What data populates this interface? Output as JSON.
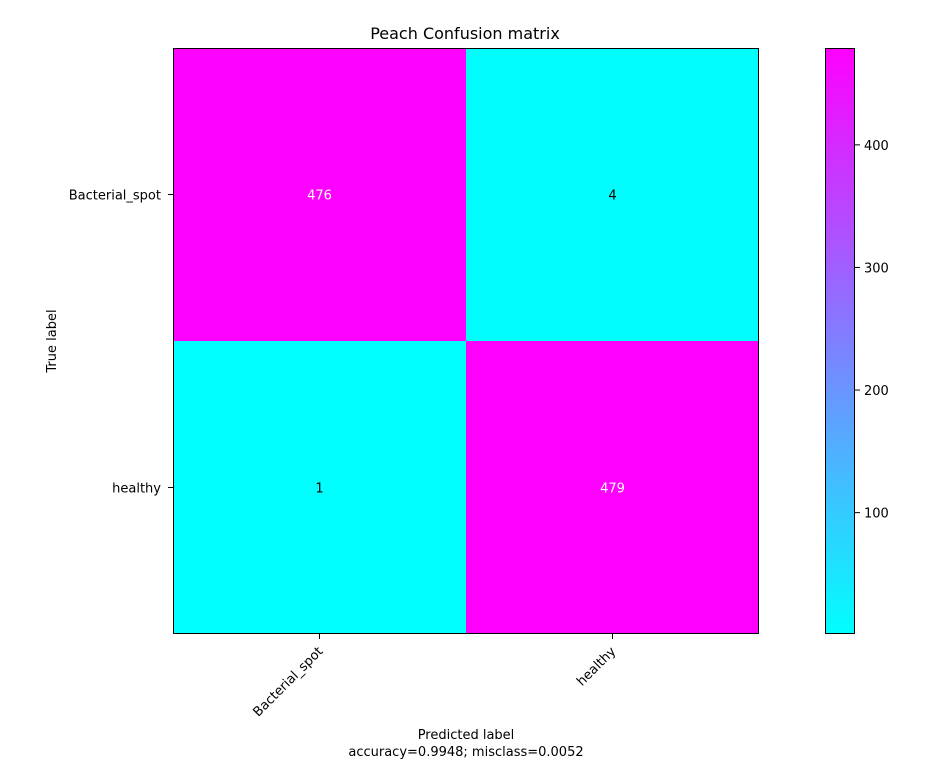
{
  "chart_data": {
    "type": "heatmap",
    "title": "Peach Confusion matrix",
    "xlabel": "Predicted label",
    "xlabel_note": "accuracy=0.9948; misclass=0.0052",
    "ylabel": "True label",
    "x_categories": [
      "Bacterial_spot",
      "healthy"
    ],
    "y_categories": [
      "Bacterial_spot",
      "healthy"
    ],
    "matrix": [
      [
        476,
        4
      ],
      [
        1,
        479
      ]
    ],
    "colormap": {
      "name": "cool",
      "low_color": "#00ffff",
      "high_color": "#ff00ff"
    },
    "value_range": [
      1,
      479
    ],
    "colorbar_ticks": [
      100,
      200,
      300,
      400
    ],
    "grid": false
  }
}
